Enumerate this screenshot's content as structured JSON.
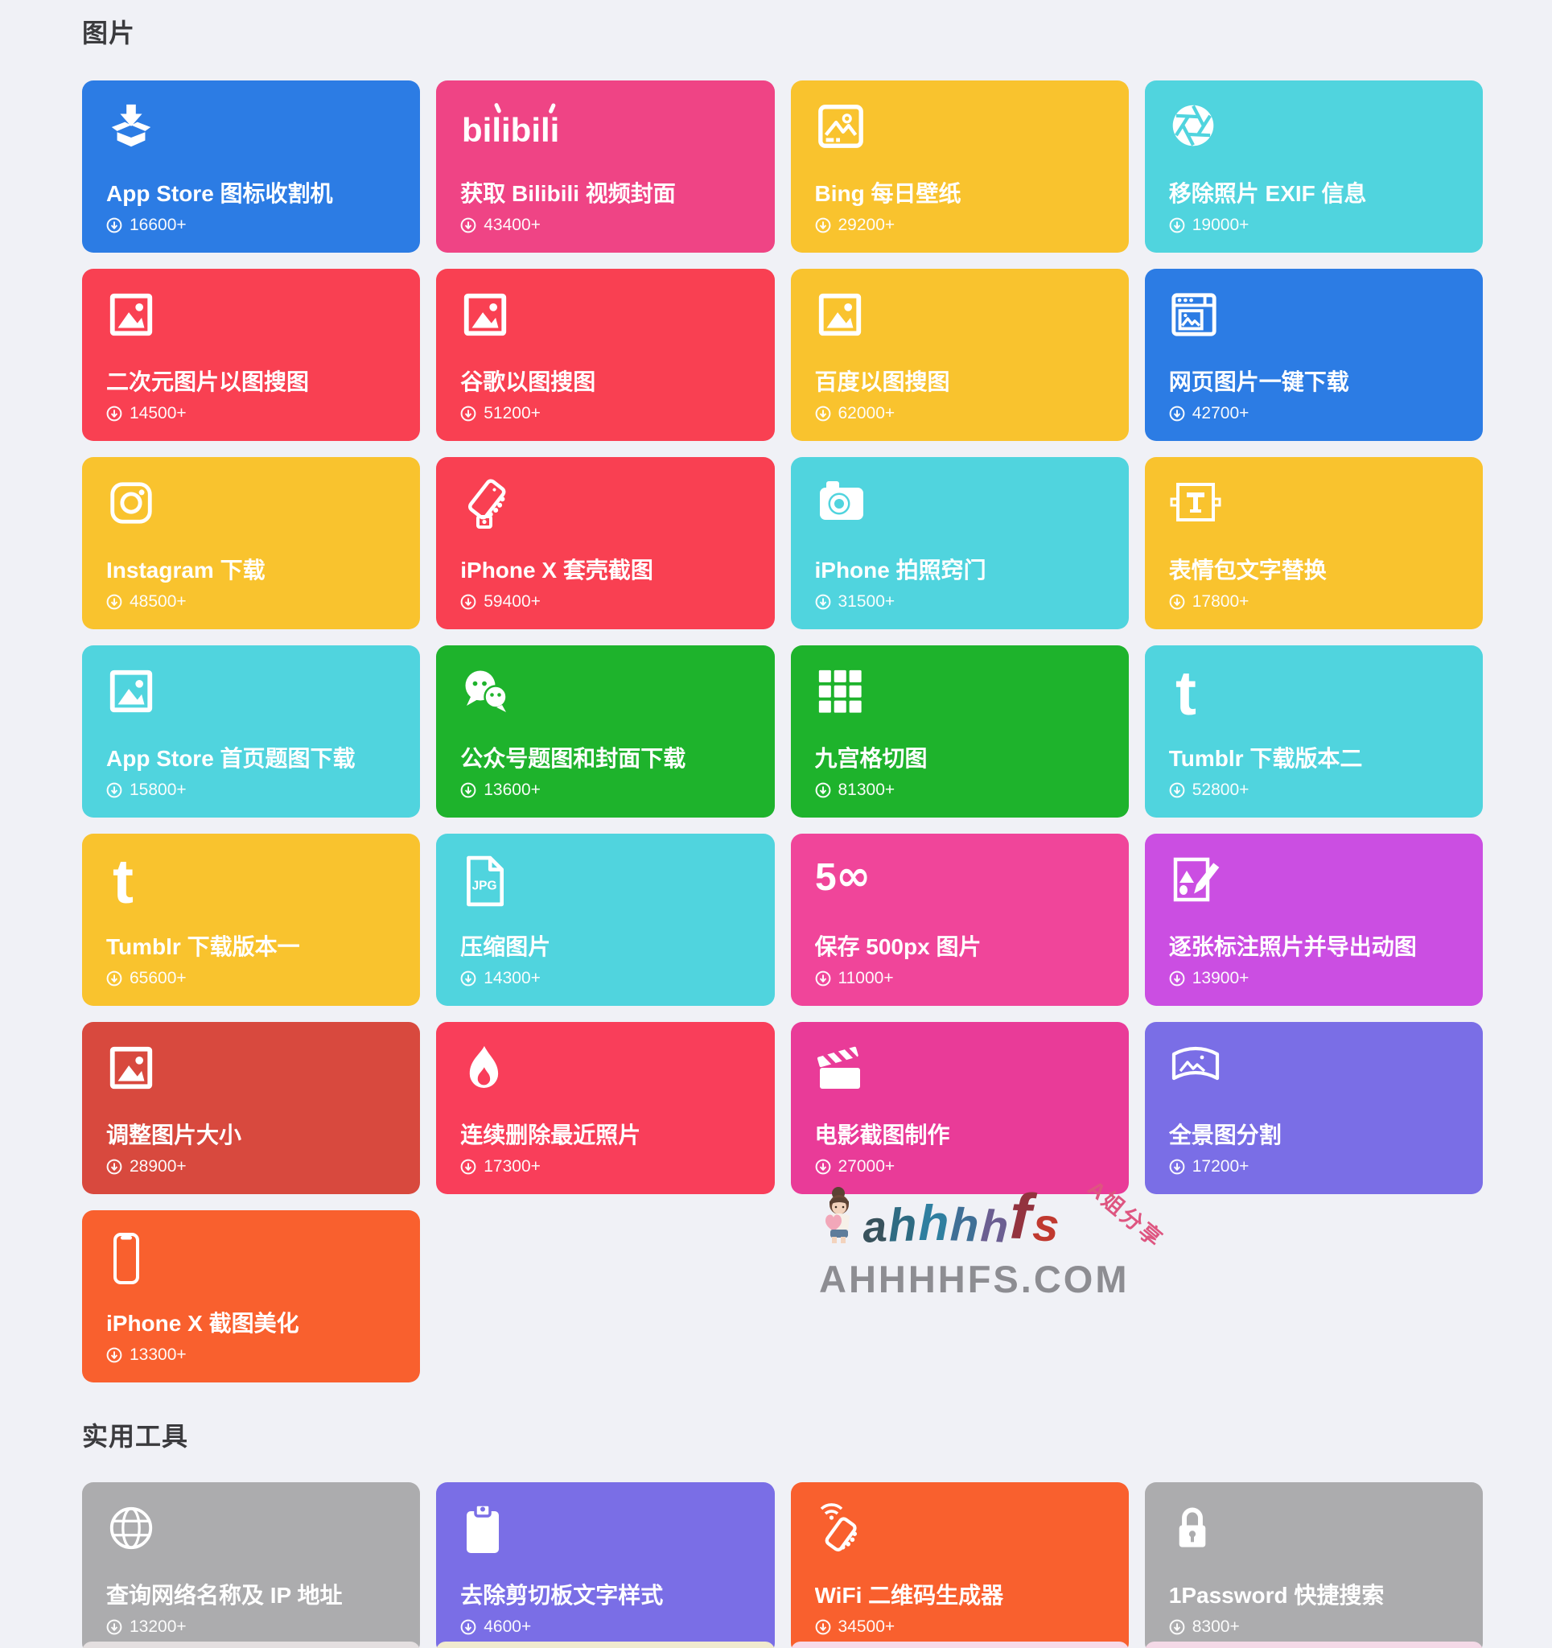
{
  "page": {
    "background": "#F0F1F6",
    "text_color_on_card": "#FFFFFF"
  },
  "watermark": {
    "logo_text": "ahhhhfs",
    "logo_letters": [
      {
        "ch": "a",
        "color": "#38525C"
      },
      {
        "ch": "h",
        "color": "#2E6B82"
      },
      {
        "ch": "h",
        "color": "#2F7FA0"
      },
      {
        "ch": "h",
        "color": "#3F6F96"
      },
      {
        "ch": "h",
        "color": "#6B5E91"
      },
      {
        "ch": "f",
        "color": "#93333F"
      },
      {
        "ch": "s",
        "color": "#C0392F"
      }
    ],
    "badge": "A姐分享",
    "domain": "AHHHHFS.COM",
    "mascot_icon": "girl-with-heart-icon"
  },
  "download_badge_icon": "circle-arrow-down-icon",
  "sections": [
    {
      "title": "图片",
      "cards": [
        {
          "title": "App Store 图标收割机",
          "count": "16600+",
          "color": "#2C7CE4",
          "icon": "box-download"
        },
        {
          "title": "获取 Bilibili 视频封面",
          "count": "43400+",
          "color": "#EF4485",
          "icon": "bilibili"
        },
        {
          "title": "Bing 每日壁纸",
          "count": "29200+",
          "color": "#F9C32E",
          "icon": "photo-tablet"
        },
        {
          "title": "移除照片 EXIF 信息",
          "count": "19000+",
          "color": "#50D4DE",
          "icon": "aperture"
        },
        {
          "title": "二次元图片以图搜图",
          "count": "14500+",
          "color": "#F94052",
          "icon": "photo"
        },
        {
          "title": "谷歌以图搜图",
          "count": "51200+",
          "color": "#F94052",
          "icon": "photo"
        },
        {
          "title": "百度以图搜图",
          "count": "62000+",
          "color": "#F9C32E",
          "icon": "photo"
        },
        {
          "title": "网页图片一键下载",
          "count": "42700+",
          "color": "#2C7CE4",
          "icon": "browser-image"
        },
        {
          "title": "Instagram 下载",
          "count": "48500+",
          "color": "#F9C32E",
          "icon": "instagram"
        },
        {
          "title": "iPhone X 套壳截图",
          "count": "59400+",
          "color": "#F94052",
          "icon": "phone-hand"
        },
        {
          "title": "iPhone 拍照窍门",
          "count": "31500+",
          "color": "#50D4DE",
          "icon": "camera"
        },
        {
          "title": "表情包文字替换",
          "count": "17800+",
          "color": "#F9C32E",
          "icon": "text-frame"
        },
        {
          "title": "App Store 首页题图下载",
          "count": "15800+",
          "color": "#50D4DE",
          "icon": "photo"
        },
        {
          "title": "公众号题图和封面下载",
          "count": "13600+",
          "color": "#1EB32C",
          "icon": "wechat"
        },
        {
          "title": "九宫格切图",
          "count": "81300+",
          "color": "#1EB32C",
          "icon": "grid9"
        },
        {
          "title": "Tumblr 下载版本二",
          "count": "52800+",
          "color": "#50D4DE",
          "icon": "tumblr"
        },
        {
          "title": "Tumblr 下载版本一",
          "count": "65600+",
          "color": "#F9C32E",
          "icon": "tumblr"
        },
        {
          "title": "压缩图片",
          "count": "14300+",
          "color": "#50D4DE",
          "icon": "jpg-file"
        },
        {
          "title": "保存 500px 图片",
          "count": "11000+",
          "color": "#F0459A",
          "icon": "fivehundredpx"
        },
        {
          "title": "逐张标注照片并导出动图",
          "count": "13900+",
          "color": "#CB4EE2",
          "icon": "annotate"
        },
        {
          "title": "调整图片大小",
          "count": "28900+",
          "color": "#D8493E",
          "icon": "photo"
        },
        {
          "title": "连续删除最近照片",
          "count": "17300+",
          "color": "#F93E5A",
          "icon": "flame"
        },
        {
          "title": "电影截图制作",
          "count": "27000+",
          "color": "#E93B98",
          "icon": "clapper"
        },
        {
          "title": "全景图分割",
          "count": "17200+",
          "color": "#7A6EE6",
          "icon": "panorama"
        },
        {
          "title": "iPhone X 截图美化",
          "count": "13300+",
          "color": "#F9602E",
          "icon": "iphone"
        }
      ]
    },
    {
      "title": "实用工具",
      "cards": [
        {
          "title": "查询网络名称及 IP 地址",
          "count": "13200+",
          "color": "#ACACAE",
          "icon": "globe"
        },
        {
          "title": "去除剪切板文字样式",
          "count": "4600+",
          "color": "#7A6EE6",
          "icon": "clipboard"
        },
        {
          "title": "WiFi 二维码生成器",
          "count": "34500+",
          "color": "#F9602E",
          "icon": "wifi-phone"
        },
        {
          "title": "1Password 快捷搜索",
          "count": "8300+",
          "color": "#ACACAE",
          "icon": "padlock"
        }
      ]
    }
  ],
  "partial_next_row": {
    "colors": [
      "#E4DFE0",
      "#F0EACF",
      "#F7DAE8",
      "#F4D9E7"
    ]
  }
}
